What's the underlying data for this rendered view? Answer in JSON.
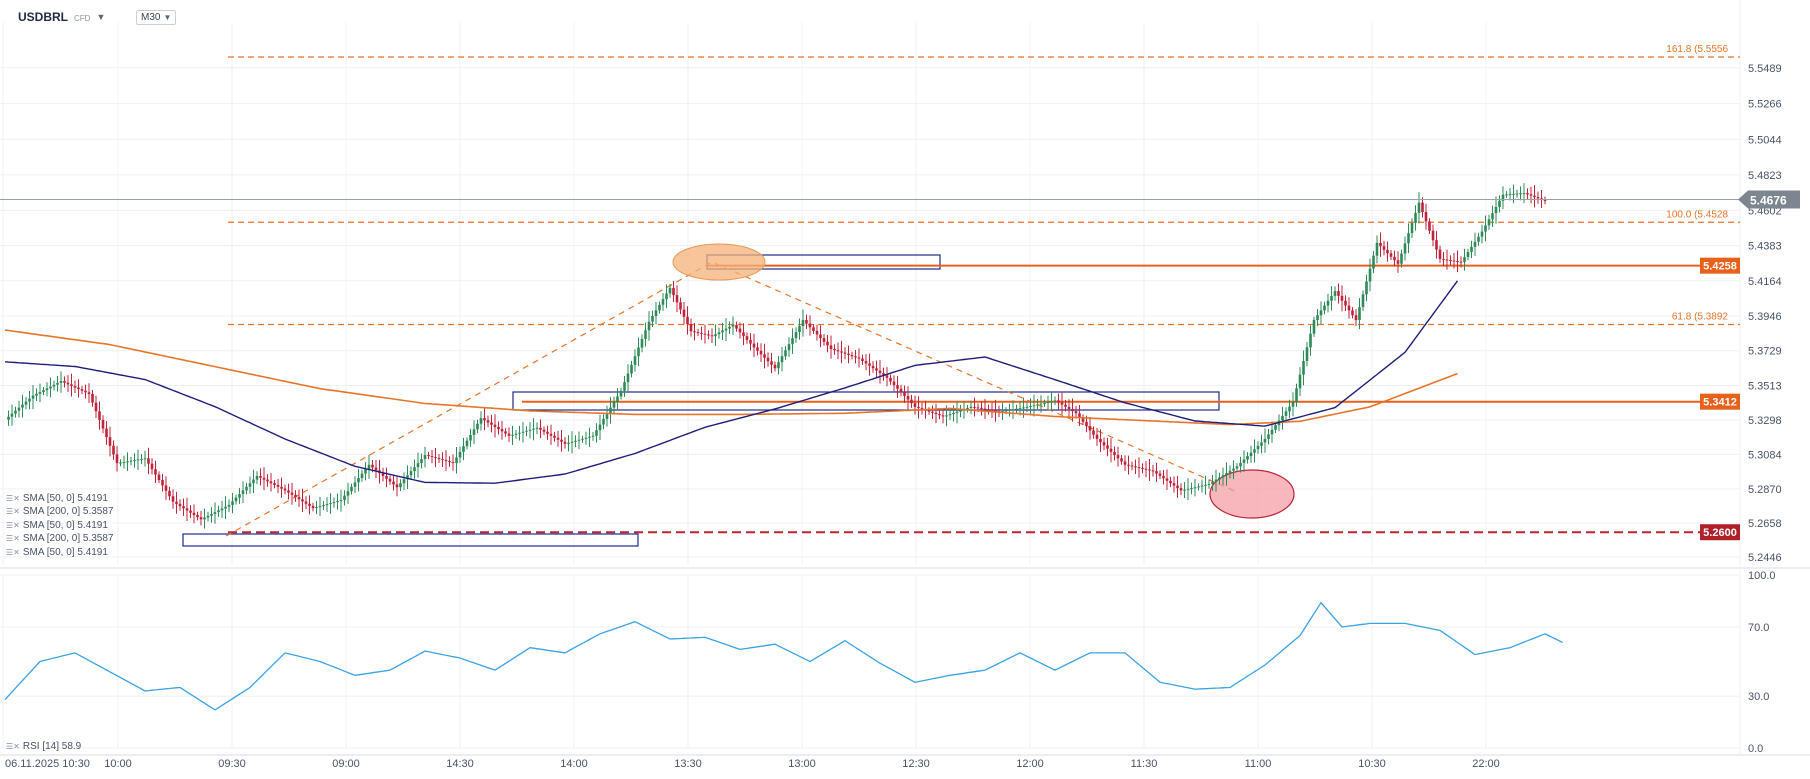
{
  "header": {
    "symbol": "USDBRL",
    "instrument_type": "CFD",
    "timeframe": "M30"
  },
  "legend": [
    "SMA [50, 0] 5.4191",
    "SMA [200, 0] 5.3587",
    "SMA [50, 0] 5.4191",
    "SMA [200, 0] 5.3587",
    "SMA [50, 0] 5.4191"
  ],
  "rsi_label": "RSI [14] 58.9",
  "colors": {
    "bull": "#2e8b57",
    "bear": "#c0233a",
    "sma50": "#1e1e7a",
    "sma200": "#e8742a",
    "fib": "#e8742a",
    "level": "#e8601a",
    "support": "#c0232f",
    "rsi": "#3aa3e3",
    "box": "#1e2a8a"
  },
  "chart_data": [
    {
      "type": "candlestick",
      "title": "USDBRL",
      "timeframe": "M30",
      "ylim": [
        5.2446,
        5.5556
      ],
      "yticks": [
        5.5489,
        5.5266,
        5.5044,
        5.4823,
        5.4602,
        5.4383,
        5.4164,
        5.3946,
        5.3729,
        5.3513,
        5.3298,
        5.3084,
        5.287,
        5.2658,
        5.2446
      ],
      "xticks": [
        "06.11.2025 10:30",
        "10:00",
        "09:30",
        "09:00",
        "14:30",
        "14:00",
        "13:30",
        "13:00",
        "12:30",
        "12:00",
        "11:30",
        "11:00",
        "10:30",
        "22:00"
      ],
      "last_price": "5.4676",
      "horizontal_levels": [
        {
          "label": "5.4258",
          "value": 5.4258
        },
        {
          "label": "5.3412",
          "value": 5.3412
        },
        {
          "label": "5.2600",
          "value": 5.26
        }
      ],
      "fibonacci": [
        {
          "label": "161.8 (5.5556",
          "value": 5.5556
        },
        {
          "label": "100.0 (5.4528",
          "value": 5.4528
        },
        {
          "label": "61.8 (5.3892",
          "value": 5.3892
        }
      ],
      "anchors": [
        {
          "name": "sma50",
          "points": [
            [
              0,
              5.366
            ],
            [
              20,
              5.3631
            ],
            [
              40,
              5.355
            ],
            [
              60,
              5.3381
            ],
            [
              80,
              5.318
            ],
            [
              100,
              5.301
            ],
            [
              120,
              5.291
            ],
            [
              140,
              5.2905
            ],
            [
              160,
              5.2962
            ],
            [
              180,
              5.309
            ],
            [
              200,
              5.3253
            ],
            [
              220,
              5.3367
            ],
            [
              240,
              5.3498
            ],
            [
              260,
              5.3638
            ],
            [
              280,
              5.369
            ],
            [
              300,
              5.3549
            ],
            [
              320,
              5.3405
            ],
            [
              340,
              5.3292
            ],
            [
              360,
              5.326
            ],
            [
              380,
              5.3375
            ],
            [
              400,
              5.3719
            ],
            [
              415,
              5.4164
            ]
          ]
        },
        {
          "name": "sma200",
          "points": [
            [
              0,
              5.3858
            ],
            [
              30,
              5.3767
            ],
            [
              60,
              5.363
            ],
            [
              90,
              5.3493
            ],
            [
              120,
              5.3401
            ],
            [
              150,
              5.3355
            ],
            [
              180,
              5.3333
            ],
            [
              210,
              5.3333
            ],
            [
              240,
              5.334
            ],
            [
              270,
              5.337
            ],
            [
              300,
              5.332
            ],
            [
              330,
              5.329
            ],
            [
              350,
              5.327
            ],
            [
              370,
              5.329
            ],
            [
              390,
              5.338
            ],
            [
              415,
              5.3587
            ]
          ]
        },
        {
          "name": "close",
          "points": [
            [
              0,
              5.33
            ],
            [
              8,
              5.345
            ],
            [
              16,
              5.354
            ],
            [
              24,
              5.346
            ],
            [
              32,
              5.303
            ],
            [
              40,
              5.306
            ],
            [
              48,
              5.279
            ],
            [
              56,
              5.268
            ],
            [
              64,
              5.277
            ],
            [
              72,
              5.295
            ],
            [
              80,
              5.286
            ],
            [
              88,
              5.275
            ],
            [
              96,
              5.28
            ],
            [
              104,
              5.302
            ],
            [
              112,
              5.288
            ],
            [
              120,
              5.308
            ],
            [
              128,
              5.303
            ],
            [
              136,
              5.331
            ],
            [
              144,
              5.32
            ],
            [
              152,
              5.325
            ],
            [
              160,
              5.315
            ],
            [
              168,
              5.32
            ],
            [
              176,
              5.348
            ],
            [
              184,
              5.391
            ],
            [
              190,
              5.412
            ],
            [
              196,
              5.385
            ],
            [
              202,
              5.382
            ],
            [
              208,
              5.389
            ],
            [
              214,
              5.375
            ],
            [
              220,
              5.362
            ],
            [
              228,
              5.392
            ],
            [
              236,
              5.374
            ],
            [
              244,
              5.368
            ],
            [
              252,
              5.356
            ],
            [
              260,
              5.338
            ],
            [
              268,
              5.332
            ],
            [
              276,
              5.338
            ],
            [
              284,
              5.335
            ],
            [
              292,
              5.338
            ],
            [
              300,
              5.342
            ],
            [
              306,
              5.334
            ],
            [
              312,
              5.318
            ],
            [
              320,
              5.302
            ],
            [
              328,
              5.298
            ],
            [
              336,
              5.286
            ],
            [
              344,
              5.29
            ],
            [
              352,
              5.301
            ],
            [
              360,
              5.318
            ],
            [
              368,
              5.341
            ],
            [
              374,
              5.392
            ],
            [
              380,
              5.41
            ],
            [
              386,
              5.392
            ],
            [
              392,
              5.44
            ],
            [
              398,
              5.427
            ],
            [
              404,
              5.465
            ],
            [
              410,
              5.43
            ],
            [
              416,
              5.428
            ],
            [
              422,
              5.447
            ],
            [
              428,
              5.47
            ],
            [
              434,
              5.471
            ],
            [
              440,
              5.466
            ]
          ]
        },
        {
          "name": "rsi",
          "points": [
            [
              0,
              28
            ],
            [
              10,
              50
            ],
            [
              20,
              55
            ],
            [
              30,
              44
            ],
            [
              40,
              33
            ],
            [
              50,
              35
            ],
            [
              60,
              22
            ],
            [
              70,
              35
            ],
            [
              80,
              55
            ],
            [
              90,
              50
            ],
            [
              100,
              42
            ],
            [
              110,
              45
            ],
            [
              120,
              56
            ],
            [
              130,
              52
            ],
            [
              140,
              45
            ],
            [
              150,
              58
            ],
            [
              160,
              55
            ],
            [
              170,
              66
            ],
            [
              180,
              73
            ],
            [
              190,
              63
            ],
            [
              200,
              64
            ],
            [
              210,
              57
            ],
            [
              220,
              60
            ],
            [
              230,
              50
            ],
            [
              240,
              62
            ],
            [
              250,
              49
            ],
            [
              260,
              38
            ],
            [
              270,
              42
            ],
            [
              280,
              45
            ],
            [
              290,
              55
            ],
            [
              300,
              45
            ],
            [
              310,
              55
            ],
            [
              320,
              55
            ],
            [
              330,
              38
            ],
            [
              340,
              34
            ],
            [
              350,
              35
            ],
            [
              360,
              48
            ],
            [
              370,
              65
            ],
            [
              376,
              84
            ],
            [
              382,
              70
            ],
            [
              390,
              72
            ],
            [
              400,
              72
            ],
            [
              410,
              68
            ],
            [
              420,
              54
            ],
            [
              430,
              58
            ],
            [
              440,
              66
            ],
            [
              445,
              61
            ]
          ]
        }
      ],
      "annotations": [
        "orange ellipse at top",
        "red ellipse at bottom",
        "rectangle zones"
      ]
    },
    {
      "type": "line",
      "title": "RSI [14] 58.9",
      "ylim": [
        0,
        100
      ],
      "yticks": [
        100.0,
        70.0,
        30.0,
        0.0
      ]
    }
  ]
}
